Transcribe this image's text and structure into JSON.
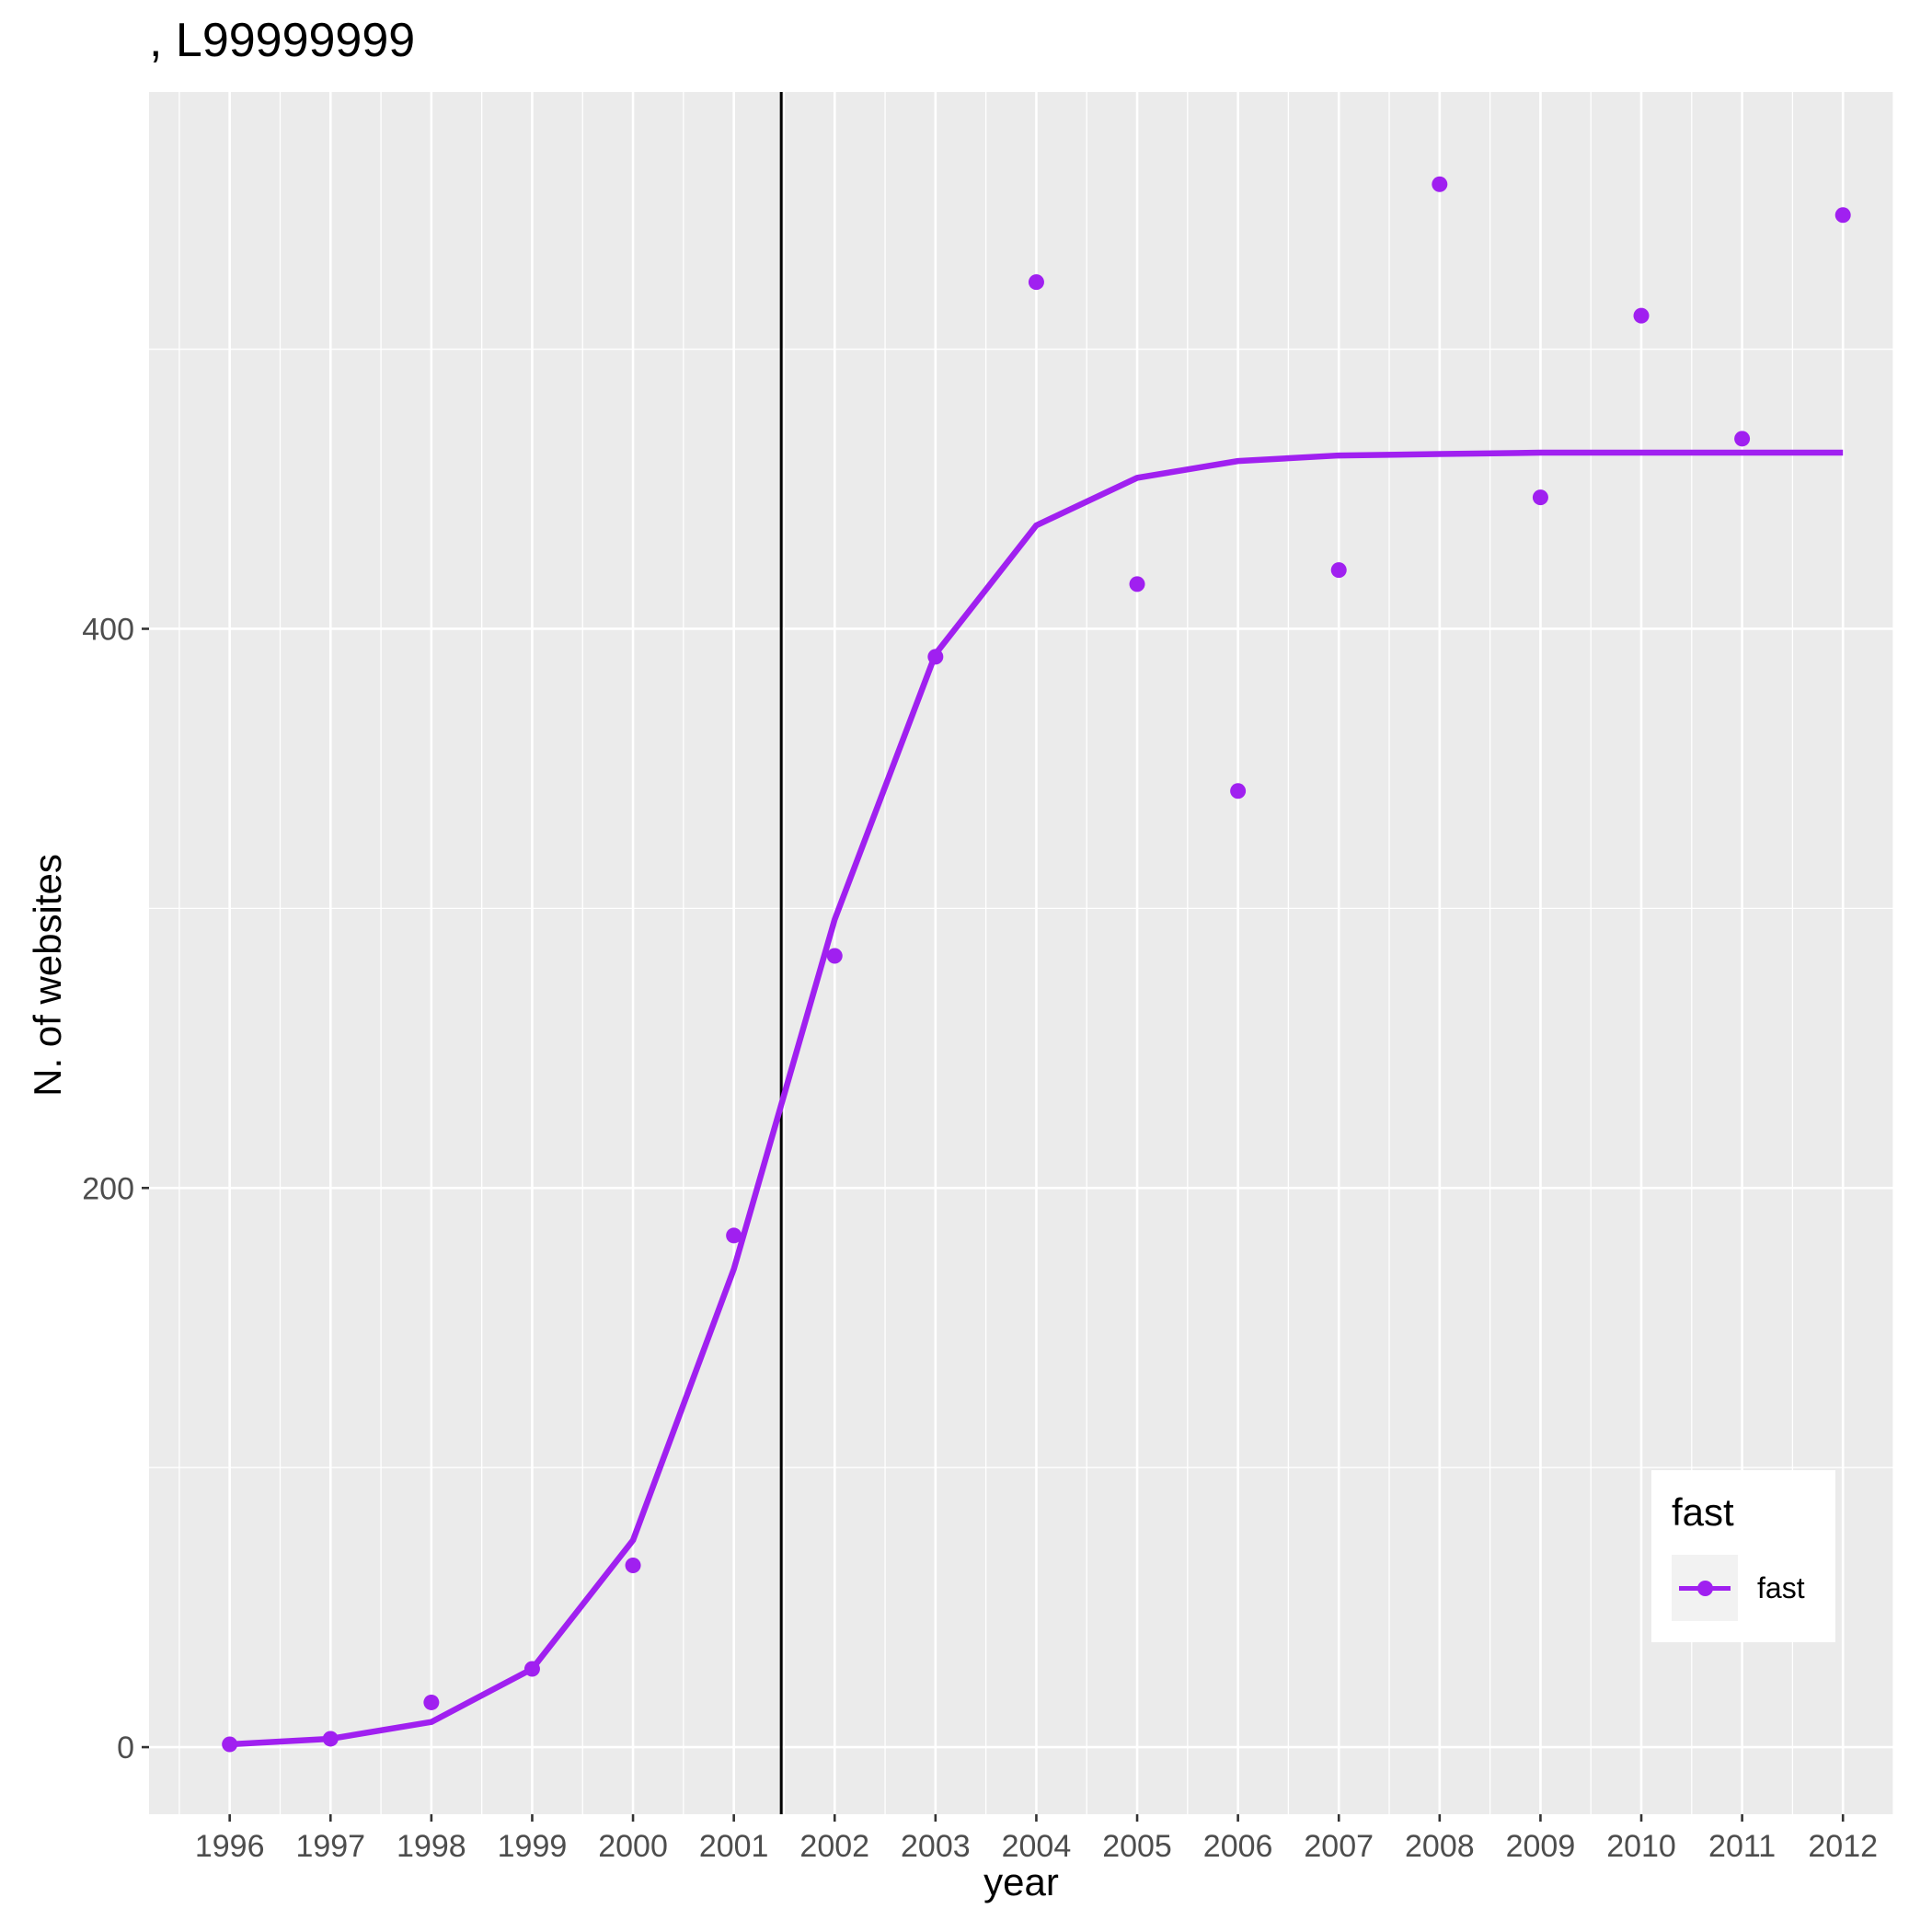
{
  "title": ", L99999999",
  "chart_data": {
    "type": "line",
    "xlabel": "year",
    "ylabel": "N. of websites",
    "x": [
      1996,
      1997,
      1998,
      1999,
      2000,
      2001,
      2002,
      2003,
      2004,
      2005,
      2006,
      2007,
      2008,
      2009,
      2010,
      2011,
      2012
    ],
    "xticks": [
      "1996",
      "1997",
      "1998",
      "1999",
      "2000",
      "2001",
      "2002",
      "2003",
      "2004",
      "2005",
      "2006",
      "2007",
      "2008",
      "2009",
      "2010",
      "2011",
      "2012"
    ],
    "yticks": [
      "0",
      "200",
      "400"
    ],
    "xlim": [
      1995.2,
      2012.5
    ],
    "ylim": [
      -24,
      592
    ],
    "vline_x": 2001.47,
    "series": [
      {
        "name": "fast",
        "color": "#a020f0",
        "points": [
          1,
          3,
          16,
          28,
          65,
          183,
          283,
          390,
          524,
          416,
          342,
          421,
          559,
          447,
          512,
          468,
          548
        ],
        "fit": [
          1,
          3,
          9,
          28,
          74,
          171,
          296,
          391,
          437,
          454,
          460,
          462,
          462.5,
          463,
          463,
          463,
          463
        ]
      }
    ],
    "legend": {
      "title": "fast",
      "position": "bottom-right"
    },
    "grid": true
  }
}
